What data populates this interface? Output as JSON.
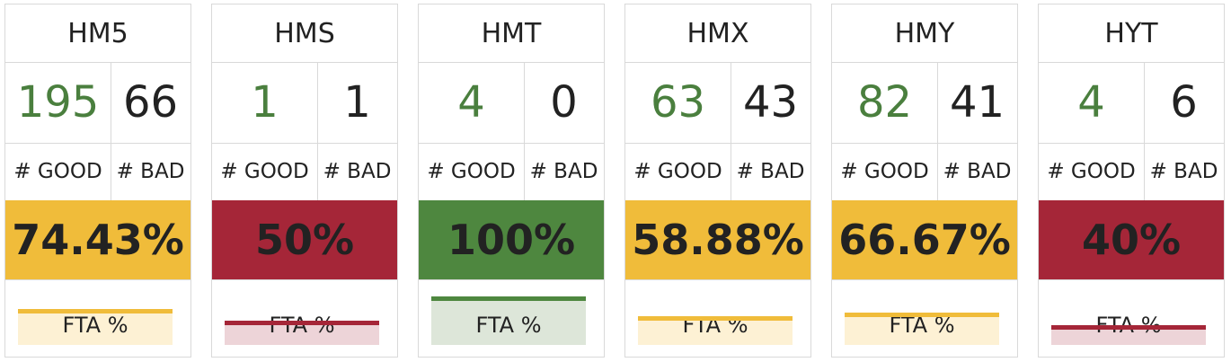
{
  "colors": {
    "good_green": "#4a7f3e",
    "yellow": "#f0bc3a",
    "red": "#a52638",
    "green": "#4e873f",
    "yellow_light": "#fdf1d4",
    "red_light": "#edd4d8",
    "green_light": "#dde6d9"
  },
  "cards": [
    {
      "name": "HM5",
      "good": "195",
      "bad": "66",
      "good_label": "# GOOD",
      "bad_label": "# BAD",
      "percent": "74.43%",
      "status": "yellow",
      "fta_label": "FTA %",
      "fta_fraction": 0.7443
    },
    {
      "name": "HMS",
      "good": "1",
      "bad": "1",
      "good_label": "# GOOD",
      "bad_label": "# BAD",
      "percent": "50%",
      "status": "red",
      "fta_label": "FTA %",
      "fta_fraction": 0.5
    },
    {
      "name": "HMT",
      "good": "4",
      "bad": "0",
      "good_label": "# GOOD",
      "bad_label": "# BAD",
      "percent": "100%",
      "status": "green",
      "fta_label": "FTA %",
      "fta_fraction": 1.0
    },
    {
      "name": "HMX",
      "good": "63",
      "bad": "43",
      "good_label": "# GOOD",
      "bad_label": "# BAD",
      "percent": "58.88%",
      "status": "yellow",
      "fta_label": "FTA %",
      "fta_fraction": 0.5888
    },
    {
      "name": "HMY",
      "good": "82",
      "bad": "41",
      "good_label": "# GOOD",
      "bad_label": "# BAD",
      "percent": "66.67%",
      "status": "yellow",
      "fta_label": "FTA %",
      "fta_fraction": 0.6667
    },
    {
      "name": "HYT",
      "good": "4",
      "bad": "6",
      "good_label": "# GOOD",
      "bad_label": "# BAD",
      "percent": "40%",
      "status": "red",
      "fta_label": "FTA %",
      "fta_fraction": 0.4
    }
  ]
}
